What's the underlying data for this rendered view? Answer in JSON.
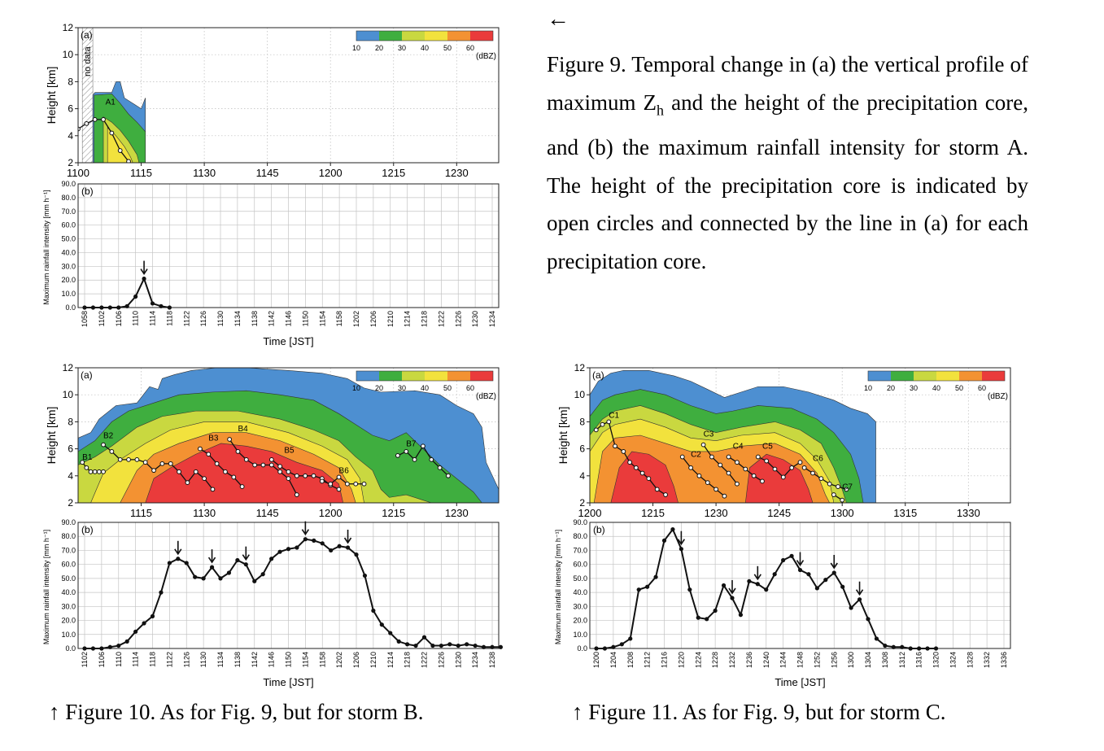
{
  "captions": {
    "back_arrow": "←",
    "fig9_part1": "Figure 9. Temporal change in (a) the vertical profile of maximum Z",
    "fig9_sub": "h",
    "fig9_part2": " and the height of the precipitation core, and (b) the maximum rainfall intensity for storm A. The height of the precipitation core is indicated by open circles and connected by the line in (a) for each precipitation core.",
    "fig10": "↑ Figure 10. As for Fig. 9, but for storm B.",
    "fig11": "↑ Figure 11. As for Fig. 9, but for storm C."
  },
  "colorbar": {
    "colors": [
      "#4d8fd1",
      "#3fae3f",
      "#c9d840",
      "#f2e23d",
      "#f39232",
      "#ea3b3b"
    ],
    "ticks": [
      "10",
      "20",
      "30",
      "40",
      "50",
      "60"
    ],
    "unit": "(dBZ)"
  },
  "chart_data": [
    {
      "id": "9a",
      "type": "contour",
      "panel_label": "(a)",
      "ylabel": "Height [km]",
      "ylim": [
        2,
        12
      ],
      "yticks": [
        "2",
        "4",
        "6",
        "8",
        "10",
        "12"
      ],
      "xlim": [
        0,
        100
      ],
      "xticks": [
        "1100",
        "1115",
        "1130",
        "1145",
        "1200",
        "1215",
        "1230"
      ],
      "xtick_minutes": [
        0,
        15,
        30,
        45,
        60,
        75,
        90
      ],
      "annotation": "no data",
      "no_data_range": [
        1,
        3.5
      ],
      "core_labels": [
        {
          "text": "A1",
          "x": 6.5,
          "y": 6.3
        }
      ],
      "cores": [
        {
          "name": "A1",
          "x": [
            0,
            2,
            4,
            6,
            8,
            10,
            12
          ],
          "y": [
            4.5,
            4.9,
            5.2,
            5.2,
            4.2,
            2.9,
            2.1
          ]
        }
      ],
      "echo_extent": {
        "x": [
          3.5,
          16
        ],
        "top": 8.0
      }
    },
    {
      "id": "9b",
      "type": "line",
      "panel_label": "(b)",
      "ylabel": "Maximum rainfall intensity [mm h⁻¹]",
      "xlabel": "Time [JST]",
      "ylim": [
        0,
        90
      ],
      "yticks": [
        "0.0",
        "10.0",
        "20.0",
        "30.0",
        "40.0",
        "50.0",
        "60.0",
        "70.0",
        "80.0",
        "90.0"
      ],
      "xticks": [
        "1058",
        "1102",
        "1106",
        "1110",
        "1114",
        "1118",
        "1122",
        "1126",
        "1130",
        "1134",
        "1138",
        "1142",
        "1146",
        "1150",
        "1154",
        "1158",
        "1202",
        "1206",
        "1210",
        "1214",
        "1218",
        "1222",
        "1226",
        "1230",
        "1234"
      ],
      "x_minutes": [
        0,
        2,
        4,
        6,
        8,
        10,
        12,
        14,
        16,
        18,
        20
      ],
      "values": [
        0,
        0,
        0,
        0,
        0,
        1,
        8,
        21,
        3,
        1,
        0
      ],
      "peak_arrows_minutes": [
        14
      ]
    },
    {
      "id": "10a",
      "type": "contour",
      "panel_label": "(a)",
      "ylabel": "Height [km]",
      "ylim": [
        2,
        12
      ],
      "yticks": [
        "2",
        "4",
        "6",
        "8",
        "10",
        "12"
      ],
      "xlim": [
        0,
        100
      ],
      "xticks": [
        "1115",
        "1130",
        "1145",
        "1200",
        "1215",
        "1230"
      ],
      "xtick_minutes": [
        15,
        30,
        45,
        60,
        75,
        90
      ],
      "core_labels": [
        {
          "text": "B1",
          "x": 1,
          "y": 5.2
        },
        {
          "text": "B2",
          "x": 6,
          "y": 6.8
        },
        {
          "text": "B3",
          "x": 31,
          "y": 6.6
        },
        {
          "text": "B4",
          "x": 38,
          "y": 7.3
        },
        {
          "text": "B5",
          "x": 49,
          "y": 5.7
        },
        {
          "text": "B6",
          "x": 62,
          "y": 4.2
        },
        {
          "text": "B7",
          "x": 78,
          "y": 6.2
        }
      ],
      "cores": [
        {
          "name": "B1",
          "x": [
            1,
            2,
            3,
            4,
            5,
            6
          ],
          "y": [
            5.0,
            4.6,
            4.3,
            4.3,
            4.3,
            4.3
          ]
        },
        {
          "name": "B2",
          "x": [
            6,
            8,
            10,
            12,
            14,
            16,
            18,
            20,
            22,
            24,
            26,
            28,
            30,
            32
          ],
          "y": [
            6.3,
            5.8,
            5.2,
            5.2,
            5.2,
            5.0,
            4.4,
            4.9,
            4.9,
            4.3,
            3.5,
            4.3,
            3.8,
            3.0
          ]
        },
        {
          "name": "B3",
          "x": [
            29,
            31,
            33,
            35,
            37,
            39
          ],
          "y": [
            6.0,
            5.6,
            4.9,
            4.3,
            3.9,
            3.2
          ]
        },
        {
          "name": "B4",
          "x": [
            36,
            38,
            40,
            42,
            44,
            46,
            48,
            50,
            52
          ],
          "y": [
            6.7,
            5.8,
            5.2,
            4.8,
            4.8,
            4.8,
            4.3,
            3.8,
            2.6
          ]
        },
        {
          "name": "B5",
          "x": [
            46,
            48,
            50,
            52,
            54,
            56,
            58,
            60,
            62
          ],
          "y": [
            5.2,
            4.7,
            4.3,
            4.0,
            4.0,
            4.0,
            3.8,
            3.3,
            3.0
          ]
        },
        {
          "name": "B6",
          "x": [
            58,
            60,
            62,
            64,
            66,
            68
          ],
          "y": [
            3.6,
            3.4,
            3.9,
            3.4,
            3.4,
            3.4
          ]
        },
        {
          "name": "B7",
          "x": [
            76,
            78,
            80,
            82,
            84,
            86,
            88
          ],
          "y": [
            5.5,
            5.8,
            5.2,
            6.2,
            5.2,
            4.6,
            4.0
          ]
        }
      ],
      "echo_extent": {
        "x": [
          0,
          100
        ],
        "top": 12.0
      }
    },
    {
      "id": "10b",
      "type": "line",
      "panel_label": "(b)",
      "ylabel": "Maximum rainfall intensity [mm h⁻¹]",
      "xlabel": "Time [JST]",
      "ylim": [
        0,
        90
      ],
      "yticks": [
        "0.0",
        "10.0",
        "20.0",
        "30.0",
        "40.0",
        "50.0",
        "60.0",
        "70.0",
        "80.0",
        "90.0"
      ],
      "xticks": [
        "1102",
        "1106",
        "1110",
        "1114",
        "1118",
        "1122",
        "1126",
        "1130",
        "1134",
        "1138",
        "1142",
        "1146",
        "1150",
        "1154",
        "1158",
        "1202",
        "1206",
        "1210",
        "1214",
        "1218",
        "1222",
        "1226",
        "1230",
        "1234",
        "1238"
      ],
      "x_minutes": [
        0,
        2,
        4,
        6,
        8,
        10,
        12,
        14,
        16,
        18,
        20,
        22,
        24,
        26,
        28,
        30,
        32,
        34,
        36,
        38,
        40,
        42,
        44,
        46,
        48,
        50,
        52,
        54,
        56,
        58,
        60,
        62,
        64,
        66,
        68,
        70,
        72,
        74,
        76,
        78,
        80,
        82,
        84,
        86,
        88,
        90,
        92,
        94,
        96,
        98
      ],
      "values": [
        0,
        0,
        0,
        1,
        2,
        5,
        12,
        18,
        23,
        40,
        61,
        64,
        61,
        51,
        50,
        58,
        50,
        54,
        63,
        60,
        48,
        53,
        64,
        69,
        71,
        72,
        78,
        77,
        75,
        70,
        73,
        72,
        67,
        52,
        27,
        17,
        11,
        5,
        3,
        2,
        8,
        2,
        2,
        3,
        2,
        3,
        2,
        1,
        1,
        1
      ],
      "peak_arrows_minutes": [
        22,
        30,
        38,
        52,
        62
      ]
    },
    {
      "id": "11a",
      "type": "contour",
      "panel_label": "(a)",
      "ylabel": "Height [km]",
      "ylim": [
        2,
        12
      ],
      "yticks": [
        "2",
        "4",
        "6",
        "8",
        "10",
        "12"
      ],
      "xlim": [
        0,
        100
      ],
      "xticks": [
        "1200",
        "1215",
        "1230",
        "1245",
        "1300",
        "1315",
        "1330"
      ],
      "xtick_minutes": [
        0,
        15,
        30,
        45,
        60,
        75,
        90
      ],
      "core_labels": [
        {
          "text": "C1",
          "x": 4.5,
          "y": 8.3
        },
        {
          "text": "C2",
          "x": 24,
          "y": 5.4
        },
        {
          "text": "C3",
          "x": 27,
          "y": 6.9
        },
        {
          "text": "C4",
          "x": 34,
          "y": 6.0
        },
        {
          "text": "C5",
          "x": 41,
          "y": 6.0
        },
        {
          "text": "C6",
          "x": 53,
          "y": 5.1
        },
        {
          "text": "C7",
          "x": 60,
          "y": 3.0
        }
      ],
      "cores": [
        {
          "name": "C1",
          "x": [
            1.5,
            3,
            4.5,
            6,
            8,
            9.5,
            11,
            12.5,
            14,
            16,
            18
          ],
          "y": [
            7.4,
            7.8,
            8.0,
            6.2,
            5.8,
            5.0,
            4.6,
            4.2,
            3.8,
            3.0,
            2.6
          ]
        },
        {
          "name": "C2",
          "x": [
            22,
            24,
            26,
            28,
            30,
            32
          ],
          "y": [
            5.4,
            4.6,
            4.0,
            3.5,
            3.0,
            2.5
          ]
        },
        {
          "name": "C3",
          "x": [
            27,
            29,
            31,
            33,
            35
          ],
          "y": [
            6.3,
            5.4,
            4.8,
            4.2,
            3.4
          ]
        },
        {
          "name": "C4",
          "x": [
            33,
            35,
            37,
            39,
            41
          ],
          "y": [
            5.4,
            5.0,
            4.5,
            4.0,
            3.6
          ]
        },
        {
          "name": "C5",
          "x": [
            40,
            42,
            44,
            46,
            48,
            50
          ],
          "y": [
            5.4,
            5.1,
            4.5,
            3.9,
            4.6,
            5.0
          ]
        },
        {
          "name": "C6",
          "x": [
            51,
            53,
            55,
            57,
            59,
            61
          ],
          "y": [
            4.6,
            4.2,
            3.8,
            3.4,
            3.2,
            3.0
          ]
        },
        {
          "name": "C7",
          "x": [
            58,
            60
          ],
          "y": [
            2.6,
            2.2
          ]
        }
      ],
      "echo_extent": {
        "x": [
          0,
          68
        ],
        "top": 11.8
      }
    },
    {
      "id": "11b",
      "type": "line",
      "panel_label": "(b)",
      "ylabel": "Maximum rainfall intensity [mm h⁻¹]",
      "xlabel": "Time [JST]",
      "ylim": [
        0,
        90
      ],
      "yticks": [
        "0.0",
        "10.0",
        "20.0",
        "30.0",
        "40.0",
        "50.0",
        "60.0",
        "70.0",
        "80.0",
        "90.0"
      ],
      "xticks": [
        "1200",
        "1204",
        "1208",
        "1212",
        "1216",
        "1220",
        "1224",
        "1228",
        "1232",
        "1236",
        "1240",
        "1244",
        "1248",
        "1252",
        "1256",
        "1300",
        "1304",
        "1308",
        "1312",
        "1316",
        "1320",
        "1324",
        "1328",
        "1332",
        "1336"
      ],
      "x_minutes": [
        0,
        2,
        4,
        6,
        8,
        10,
        12,
        14,
        16,
        18,
        20,
        22,
        24,
        26,
        28,
        30,
        32,
        34,
        36,
        38,
        40,
        42,
        44,
        46,
        48,
        50,
        52,
        54,
        56,
        58,
        60,
        62,
        64,
        66,
        68,
        70,
        72,
        74,
        76,
        78,
        80
      ],
      "values": [
        0,
        0,
        1,
        3,
        7,
        42,
        44,
        51,
        77,
        85,
        71,
        42,
        22,
        21,
        27,
        45,
        36,
        24,
        48,
        46,
        42,
        53,
        63,
        66,
        56,
        53,
        43,
        49,
        54,
        44,
        29,
        35,
        21,
        7,
        2,
        1,
        1,
        0,
        0,
        0,
        0
      ],
      "peak_arrows_minutes": [
        20,
        32,
        38,
        48,
        56,
        62
      ]
    }
  ]
}
